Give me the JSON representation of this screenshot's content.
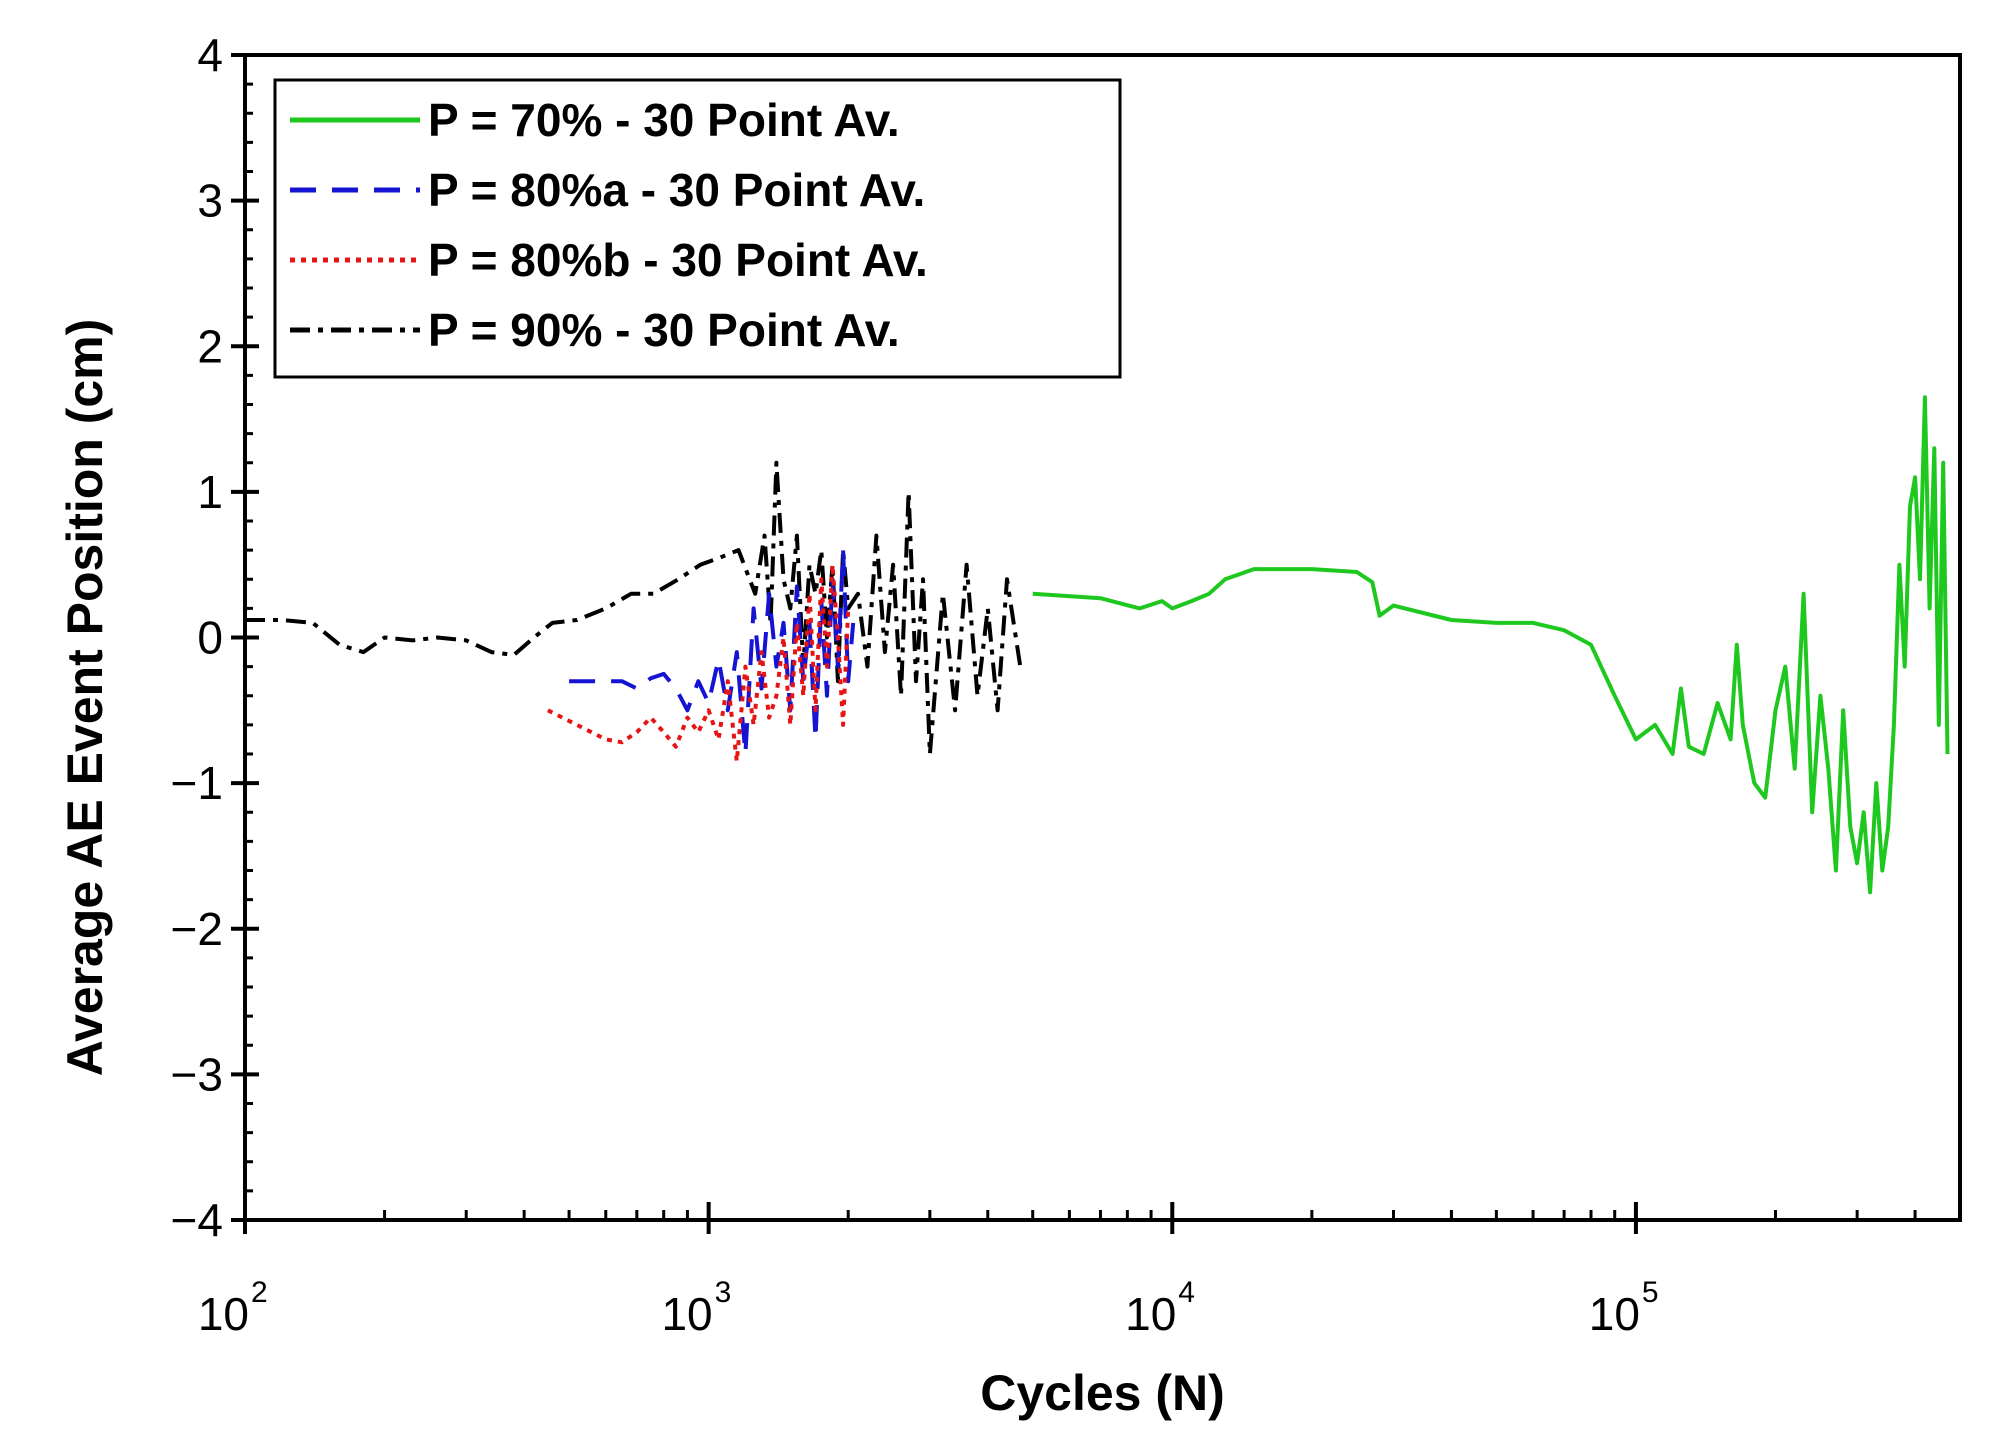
{
  "chart_data": {
    "type": "line",
    "xlabel": "Cycles (N)",
    "ylabel": "Average AE Event Position (cm)",
    "x_scale": "log",
    "xlim": [
      100,
      500000
    ],
    "ylim": [
      -4,
      4
    ],
    "x_ticks": [
      {
        "base": "10",
        "exp": "2",
        "value": 100
      },
      {
        "base": "10",
        "exp": "3",
        "value": 1000
      },
      {
        "base": "10",
        "exp": "4",
        "value": 10000
      },
      {
        "base": "10",
        "exp": "5",
        "value": 100000
      }
    ],
    "y_ticks": [
      {
        "label": "4",
        "value": 4
      },
      {
        "label": "3",
        "value": 3
      },
      {
        "label": "2",
        "value": 2
      },
      {
        "label": "1",
        "value": 1
      },
      {
        "label": "0",
        "value": 0
      },
      {
        "label": "−1",
        "value": -1
      },
      {
        "label": "−2",
        "value": -2
      },
      {
        "label": "−3",
        "value": -3
      },
      {
        "label": "−4",
        "value": -4
      }
    ],
    "grid": false,
    "legend_position": "top-left",
    "series": [
      {
        "name": "P = 70% - 30 Point Av.",
        "color": "#1ec81e",
        "style": "solid",
        "x": [
          5000,
          7000,
          8500,
          9500,
          10000,
          11000,
          12000,
          13000,
          15000,
          20000,
          25000,
          27000,
          28000,
          30000,
          40000,
          50000,
          60000,
          70000,
          80000,
          90000,
          100000,
          110000,
          120000,
          125000,
          130000,
          140000,
          150000,
          160000,
          165000,
          170000,
          180000,
          190000,
          200000,
          210000,
          220000,
          230000,
          240000,
          250000,
          260000,
          270000,
          280000,
          290000,
          300000,
          310000,
          320000,
          330000,
          340000,
          350000,
          360000,
          370000,
          380000,
          390000,
          400000,
          410000,
          420000,
          430000,
          440000,
          450000,
          460000,
          470000
        ],
        "y": [
          0.3,
          0.27,
          0.2,
          0.25,
          0.2,
          0.25,
          0.3,
          0.4,
          0.47,
          0.47,
          0.45,
          0.38,
          0.15,
          0.22,
          0.12,
          0.1,
          0.1,
          0.05,
          -0.05,
          -0.4,
          -0.7,
          -0.6,
          -0.8,
          -0.35,
          -0.75,
          -0.8,
          -0.45,
          -0.7,
          -0.05,
          -0.6,
          -1.0,
          -1.1,
          -0.5,
          -0.2,
          -0.9,
          0.3,
          -1.2,
          -0.4,
          -0.9,
          -1.6,
          -0.5,
          -1.3,
          -1.55,
          -1.2,
          -1.75,
          -1.0,
          -1.6,
          -1.3,
          -0.6,
          0.5,
          -0.2,
          0.9,
          1.1,
          0.4,
          1.65,
          0.2,
          1.3,
          -0.6,
          1.2,
          -0.8
        ]
      },
      {
        "name": "P = 80%a - 30 Point Av.",
        "color": "#1414d2",
        "style": "dashed",
        "x": [
          500,
          650,
          700,
          750,
          800,
          850,
          900,
          950,
          1000,
          1050,
          1100,
          1150,
          1200,
          1250,
          1300,
          1350,
          1400,
          1450,
          1500,
          1550,
          1600,
          1650,
          1700,
          1750,
          1800,
          1850,
          1900,
          1950,
          2000,
          2050
        ],
        "y": [
          -0.3,
          -0.3,
          -0.35,
          -0.28,
          -0.25,
          -0.35,
          -0.5,
          -0.3,
          -0.45,
          -0.15,
          -0.5,
          -0.1,
          -0.8,
          0.2,
          -0.35,
          0.3,
          -0.2,
          0.1,
          -0.5,
          0.35,
          -0.3,
          0.1,
          -0.7,
          0.25,
          -0.4,
          0.4,
          -0.2,
          0.6,
          -0.3,
          0.1
        ]
      },
      {
        "name": "P = 80%b - 30 Point Av.",
        "color": "#e61414",
        "style": "dotted",
        "x": [
          450,
          520,
          600,
          650,
          700,
          750,
          800,
          850,
          900,
          950,
          1000,
          1050,
          1100,
          1150,
          1200,
          1250,
          1300,
          1350,
          1400,
          1450,
          1500,
          1550,
          1600,
          1650,
          1700,
          1750,
          1800,
          1850,
          1900,
          1950,
          2000
        ],
        "y": [
          -0.5,
          -0.6,
          -0.7,
          -0.72,
          -0.65,
          -0.55,
          -0.65,
          -0.75,
          -0.55,
          -0.65,
          -0.5,
          -0.7,
          -0.3,
          -0.85,
          -0.2,
          -0.6,
          -0.1,
          -0.55,
          -0.4,
          0.0,
          -0.6,
          0.1,
          -0.4,
          0.3,
          -0.5,
          0.4,
          -0.2,
          0.5,
          0.0,
          -0.6,
          0.2
        ]
      },
      {
        "name": "P = 90% - 30 Point Av.",
        "color": "#000000",
        "style": "dashdot",
        "x": [
          100,
          120,
          140,
          160,
          180,
          200,
          230,
          260,
          300,
          340,
          380,
          420,
          460,
          520,
          600,
          680,
          760,
          860,
          960,
          1060,
          1160,
          1260,
          1320,
          1360,
          1400,
          1450,
          1500,
          1550,
          1600,
          1650,
          1700,
          1750,
          1800,
          1850,
          1900,
          1950,
          2000,
          2100,
          2200,
          2300,
          2400,
          2500,
          2600,
          2700,
          2800,
          2900,
          3000,
          3200,
          3400,
          3600,
          3800,
          4000,
          4200,
          4400,
          4700
        ],
        "y": [
          0.12,
          0.12,
          0.1,
          -0.05,
          -0.1,
          0.0,
          -0.02,
          0.0,
          -0.02,
          -0.1,
          -0.12,
          0.0,
          0.1,
          0.12,
          0.2,
          0.3,
          0.3,
          0.4,
          0.5,
          0.55,
          0.6,
          0.3,
          0.7,
          0.1,
          1.2,
          0.4,
          0.2,
          0.7,
          -0.2,
          0.5,
          0.3,
          0.6,
          0.0,
          0.5,
          -0.3,
          0.6,
          0.2,
          0.3,
          -0.2,
          0.7,
          -0.1,
          0.5,
          -0.4,
          1.0,
          -0.3,
          0.4,
          -0.8,
          0.3,
          -0.5,
          0.5,
          -0.4,
          0.2,
          -0.5,
          0.4,
          -0.2
        ]
      }
    ]
  }
}
